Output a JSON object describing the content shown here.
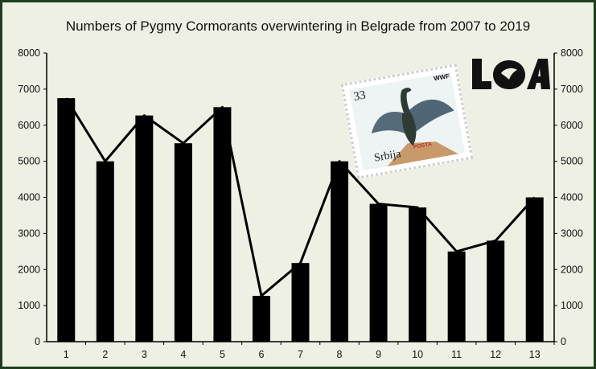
{
  "chart_data": {
    "type": "bar",
    "title": "Numbers of Pygmy Cormorants overwintering in Belgrade from 2007 to 2019",
    "categories": [
      "1",
      "2",
      "3",
      "4",
      "5",
      "6",
      "7",
      "8",
      "9",
      "10",
      "11",
      "12",
      "13"
    ],
    "values": [
      6750,
      5000,
      6270,
      5500,
      6500,
      1270,
      2180,
      5000,
      3820,
      3720,
      2500,
      2800,
      4000
    ],
    "line_values": [
      6750,
      5000,
      6270,
      5500,
      6500,
      1270,
      2180,
      5000,
      3820,
      3720,
      2500,
      2800,
      4000
    ],
    "ylim": [
      0,
      8000
    ],
    "yticks": [
      "0",
      "1000",
      "2000",
      "3000",
      "4000",
      "5000",
      "6000",
      "7000",
      "8000"
    ],
    "xlabel": "",
    "ylabel": "",
    "grid": false,
    "colors": {
      "bars": "#000000",
      "line": "#000000",
      "background": "#eef0e4",
      "frame": "#1f3d1f"
    }
  },
  "stamp": {
    "value": "33",
    "country": "Srbija",
    "post_mark": "POSTA",
    "wwf_label": "WWF"
  },
  "logo": {
    "name": "loa-logo"
  }
}
